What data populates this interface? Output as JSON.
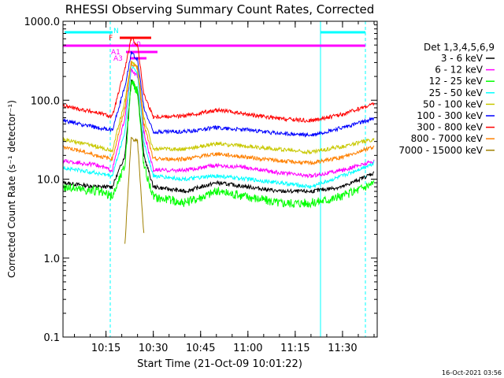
{
  "chart_data": {
    "type": "line",
    "title": "RHESSI Observing Summary Count Rates, Corrected",
    "xlabel": "Start Time (21-Oct-09 10:01:22)",
    "ylabel": "Corrected Count Rate (s⁻¹ detector⁻¹)",
    "yscale": "log",
    "ylim": [
      0.1,
      1000
    ],
    "xlim": [
      "10:01:22",
      "11:41:00"
    ],
    "x_ticks": [
      "10:15",
      "10:30",
      "10:45",
      "11:00",
      "11:15",
      "11:30"
    ],
    "y_ticks": [
      "0.1",
      "1.0",
      "10.0",
      "100.0",
      "1000.0"
    ],
    "footer": "16-Oct-2021 03:56",
    "legend_title": "Det 1,3,4,5,6,9",
    "legend_position": "right",
    "x": [
      "10:01:22",
      "10:12:00",
      "10:17:00",
      "10:21:00",
      "10:23:00",
      "10:25:00",
      "10:27:00",
      "10:30:00",
      "10:40:00",
      "10:50:00",
      "11:00:00",
      "11:10:00",
      "11:20:00",
      "11:30:00",
      "11:40:00"
    ],
    "series": [
      {
        "name": "3 - 6 keV",
        "color": "#000000",
        "values": [
          9,
          8,
          8,
          20,
          180,
          140,
          20,
          8,
          7,
          9,
          8,
          7,
          7,
          8,
          12
        ]
      },
      {
        "name": "6 - 12 keV",
        "color": "#ff00ff",
        "values": [
          17,
          15,
          13,
          60,
          240,
          200,
          40,
          13,
          13,
          15,
          14,
          12,
          11,
          13,
          17
        ]
      },
      {
        "name": "12 - 25 keV",
        "color": "#00ff00",
        "values": [
          8,
          7,
          6,
          15,
          170,
          130,
          15,
          6,
          5,
          7,
          6,
          5,
          5,
          6,
          9
        ]
      },
      {
        "name": "25 - 50 keV",
        "color": "#00ffff",
        "values": [
          14,
          12,
          11,
          40,
          280,
          220,
          30,
          11,
          10,
          11,
          10,
          9,
          8,
          11,
          16
        ]
      },
      {
        "name": "50 - 100 keV",
        "color": "#c8c800",
        "values": [
          32,
          26,
          23,
          100,
          310,
          260,
          60,
          24,
          24,
          28,
          26,
          24,
          22,
          26,
          32
        ]
      },
      {
        "name": "100 - 300 keV",
        "color": "#0000ff",
        "values": [
          55,
          45,
          42,
          150,
          400,
          330,
          80,
          40,
          40,
          45,
          42,
          38,
          36,
          45,
          58
        ]
      },
      {
        "name": "300 - 800 keV",
        "color": "#ff0000",
        "values": [
          85,
          70,
          62,
          250,
          600,
          500,
          120,
          62,
          63,
          75,
          66,
          58,
          55,
          66,
          90
        ]
      },
      {
        "name": "800 - 7000 keV",
        "color": "#ff8000",
        "values": [
          26,
          20,
          18,
          80,
          300,
          250,
          50,
          18,
          18,
          21,
          19,
          17,
          16,
          19,
          26
        ]
      },
      {
        "name": "7000 - 15000 keV",
        "color": "#a08000",
        "values": [
          null,
          null,
          null,
          1.5,
          33,
          30,
          2,
          null,
          null,
          null,
          null,
          null,
          null,
          null,
          null
        ]
      }
    ],
    "annotations": [
      "N",
      "F",
      "A0",
      "A1",
      "A3"
    ]
  }
}
